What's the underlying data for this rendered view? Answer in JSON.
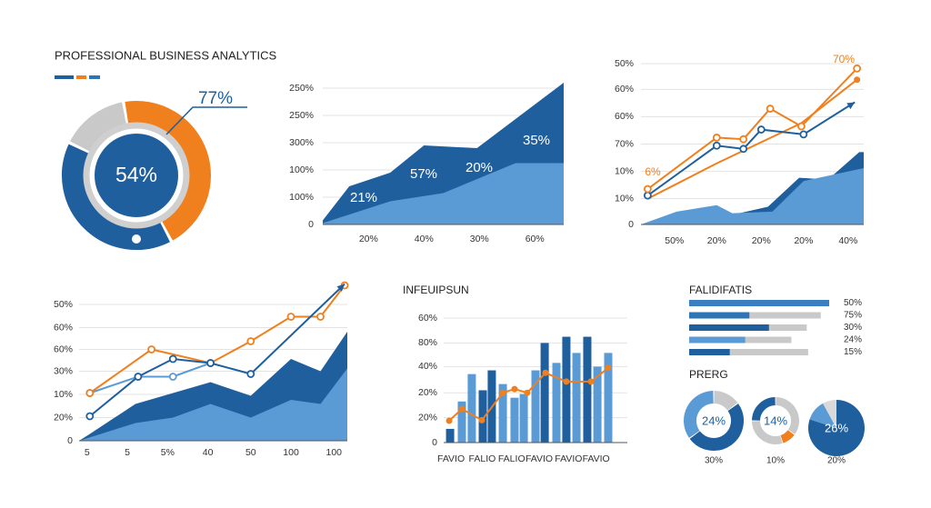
{
  "chart_data": [
    {
      "type": "donut",
      "title": "PROFESSIONAL BUSINESS ANALYTICS",
      "values": [
        45,
        40,
        15
      ],
      "colors": [
        "#f07f1e",
        "#1f5f9e",
        "#c9c9c9"
      ],
      "center_label": "54%",
      "callout": "77%"
    },
    {
      "type": "xy",
      "xlim": [
        0,
        100
      ],
      "ylim": [
        0,
        100
      ],
      "grid": true,
      "yticks": [
        0,
        {
          "value": 20,
          "label": "100%"
        },
        {
          "value": 40,
          "label": "100%"
        },
        {
          "value": 60,
          "label": "300%"
        },
        {
          "value": 80,
          "label": "250%"
        },
        {
          "value": 100,
          "label": "250%"
        }
      ],
      "xticks": [
        {
          "value": 19,
          "label": "20%"
        },
        {
          "value": 42,
          "label": "40%"
        },
        {
          "value": 65,
          "label": "30%"
        },
        {
          "value": 88,
          "label": "60%"
        }
      ],
      "series": [
        {
          "kind": "area",
          "color": "#1f5f9e",
          "x": [
            0,
            11,
            28,
            42,
            64,
            100
          ],
          "values": [
            3,
            28,
            38,
            58,
            56,
            104
          ]
        },
        {
          "kind": "area",
          "color": "#5b9bd5",
          "x": [
            0,
            28,
            50,
            80,
            100
          ],
          "values": [
            1,
            17,
            23,
            45,
            45
          ]
        }
      ],
      "annotations": [
        "21%",
        "57%",
        "20%",
        "35%"
      ]
    },
    {
      "type": "xy",
      "xlim": [
        0,
        100
      ],
      "ylim": [
        0,
        100
      ],
      "grid": true,
      "yticks": [
        0,
        {
          "value": 16,
          "label": "10%"
        },
        {
          "value": 33,
          "label": "10%"
        },
        {
          "value": 50,
          "label": "70%"
        },
        {
          "value": 67,
          "label": "60%"
        },
        {
          "value": 84,
          "label": "60%"
        },
        {
          "value": 100,
          "label": "50%"
        }
      ],
      "xticks": [
        {
          "value": 15,
          "label": "50%"
        },
        {
          "value": 34,
          "label": "20%"
        },
        {
          "value": 54,
          "label": "20%"
        },
        {
          "value": 73,
          "label": "20%"
        },
        {
          "value": 93,
          "label": "40%"
        }
      ],
      "series": [
        {
          "kind": "area",
          "color": "#1f5f9e",
          "x": [
            0,
            41,
            57,
            71,
            84,
            98,
            100
          ],
          "values": [
            0,
            6,
            11,
            29,
            28,
            45,
            45
          ]
        },
        {
          "kind": "area",
          "color": "#5b9bd5",
          "x": [
            0,
            16,
            34,
            41,
            59,
            73,
            100
          ],
          "values": [
            0,
            8,
            12,
            7,
            8,
            27,
            35
          ]
        },
        {
          "kind": "line",
          "color": "#f07f1e",
          "x": [
            3,
            34,
            72,
            97
          ],
          "values": [
            16,
            38,
            63,
            90
          ],
          "end_dot": true
        },
        {
          "kind": "line",
          "color": "#1f5f9e",
          "x": [
            3,
            34,
            46,
            54,
            73,
            96
          ],
          "values": [
            18,
            49,
            47,
            59,
            56,
            76
          ],
          "markers": true,
          "arrow": true
        },
        {
          "kind": "line",
          "color": "#f07f1e",
          "x": [
            3,
            34,
            46,
            58,
            72,
            97
          ],
          "values": [
            22,
            54,
            53,
            72,
            61,
            97
          ],
          "markers": true
        }
      ],
      "annotations": [
        "70%",
        "6%"
      ]
    },
    {
      "type": "xy",
      "xlim": [
        0,
        100
      ],
      "ylim": [
        0,
        100
      ],
      "grid": true,
      "yticks": [
        0,
        {
          "value": 17,
          "label": "20%"
        },
        {
          "value": 34,
          "label": "10%"
        },
        {
          "value": 51,
          "label": "30%"
        },
        {
          "value": 67,
          "label": "60%"
        },
        {
          "value": 83,
          "label": "60%"
        },
        {
          "value": 100,
          "label": "50%"
        }
      ],
      "xticks": [
        {
          "value": 3,
          "label": "5"
        },
        {
          "value": 18,
          "label": "5"
        },
        {
          "value": 33,
          "label": "5%"
        },
        {
          "value": 48,
          "label": "40"
        },
        {
          "value": 64,
          "label": "50"
        },
        {
          "value": 79,
          "label": "100"
        },
        {
          "value": 95,
          "label": "100"
        }
      ],
      "series": [
        {
          "kind": "area",
          "color": "#1f5f9e",
          "x": [
            0,
            4,
            21,
            35,
            49,
            64,
            79,
            90,
            100
          ],
          "values": [
            0,
            5,
            27,
            35,
            43,
            33,
            60,
            51,
            80
          ]
        },
        {
          "kind": "area",
          "color": "#5b9bd5",
          "x": [
            0,
            21,
            35,
            49,
            64,
            79,
            90,
            100
          ],
          "values": [
            0,
            13,
            17,
            27,
            17,
            30,
            27,
            53
          ]
        },
        {
          "kind": "line",
          "color": "#5b9bd5",
          "x": [
            4,
            22,
            35,
            49
          ],
          "values": [
            35,
            47,
            47,
            57
          ],
          "markers": true
        },
        {
          "kind": "line",
          "color": "#f07f1e",
          "x": [
            4,
            27,
            49,
            64,
            79,
            90,
            99
          ],
          "values": [
            35,
            67,
            57,
            73,
            91,
            91,
            114
          ],
          "markers": true
        },
        {
          "kind": "line",
          "color": "#1f5f9e",
          "x": [
            4,
            22,
            35,
            49,
            64,
            99
          ],
          "values": [
            18,
            47,
            60,
            57,
            49,
            115
          ],
          "markers": true,
          "arrow": true
        }
      ]
    },
    {
      "type": "xy",
      "title": "INFEUIPSUN",
      "xlim": [
        0,
        100
      ],
      "ylim": [
        0,
        100
      ],
      "grid": true,
      "yticks": [
        0,
        {
          "value": 20,
          "label": "20%"
        },
        {
          "value": 40,
          "label": "20%"
        },
        {
          "value": 61,
          "label": "40%"
        },
        {
          "value": 80,
          "label": "80%"
        },
        {
          "value": 100,
          "label": "60%"
        }
      ],
      "xticks": [
        {
          "value": 4,
          "label": "FAVIO"
        },
        {
          "value": 21,
          "label": "FALIO"
        },
        {
          "value": 37,
          "label": "FALIO"
        },
        {
          "value": 52,
          "label": "FAVIO"
        },
        {
          "value": 68,
          "label": "FAVIO"
        },
        {
          "value": 83,
          "label": "FAVIO"
        }
      ],
      "series": [
        {
          "kind": "bar",
          "x": [
            3.5,
            9.9,
            15.3,
            21.3,
            26.2,
            32.2,
            38.6,
            43.6,
            50,
            55,
            61.4,
            66.8,
            72.3,
            78.2,
            83.7,
            89.6
          ],
          "values": [
            11,
            33,
            55,
            42,
            58,
            47,
            36,
            39,
            58,
            80,
            64,
            85,
            72,
            85,
            61,
            72
          ],
          "colors": [
            "#1f5f9e",
            "#5b9bd5",
            "#5b9bd5",
            "#1f5f9e",
            "#1f5f9e",
            "#5b9bd5",
            "#5b9bd5",
            "#5b9bd5",
            "#5b9bd5",
            "#1f5f9e",
            "#5b9bd5",
            "#1f5f9e",
            "#5b9bd5",
            "#1f5f9e",
            "#5b9bd5",
            "#5b9bd5"
          ]
        },
        {
          "kind": "line",
          "color": "#f07f1e",
          "x": [
            3,
            9.9,
            20.8,
            32.2,
            38.6,
            45.5,
            55.4,
            66.8,
            80.2,
            89.6
          ],
          "values": [
            17.5,
            27,
            18,
            40,
            43,
            40,
            56,
            49,
            49,
            60
          ],
          "dots": true
        }
      ]
    },
    {
      "type": "hbar",
      "title": "FALIDIFATIS",
      "xlim": [
        0,
        100
      ],
      "values": [
        100,
        43,
        57,
        40,
        29
      ],
      "totals": [
        100,
        94,
        84,
        73,
        85
      ],
      "colors": [
        "#3a7fc1",
        "#2e75b6",
        "#1f5f9e",
        "#5b9bd5",
        "#1f5f9e"
      ],
      "labels": [
        "50%",
        "75%",
        "30%",
        "24%",
        "15%"
      ]
    },
    {
      "type": "donuts",
      "title": "PRERG",
      "donuts": [
        {
          "values": [
            15,
            50,
            35
          ],
          "colors": [
            "#c9c9c9",
            "#1f5f9e",
            "#5b9bd5"
          ],
          "center_label": "24%",
          "caption": "30%"
        },
        {
          "values": [
            25,
            35,
            10,
            30
          ],
          "colors": [
            "#1f5f9e",
            "#c9c9c9",
            "#f07f1e",
            "#c9c9c9"
          ],
          "center_label": "14%",
          "caption": "10%"
        },
        {
          "values": [
            80,
            12,
            8
          ],
          "colors": [
            "#1f5f9e",
            "#5b9bd5",
            "#d9d9d9"
          ],
          "center_label": "26%",
          "caption": "20%"
        }
      ]
    }
  ]
}
